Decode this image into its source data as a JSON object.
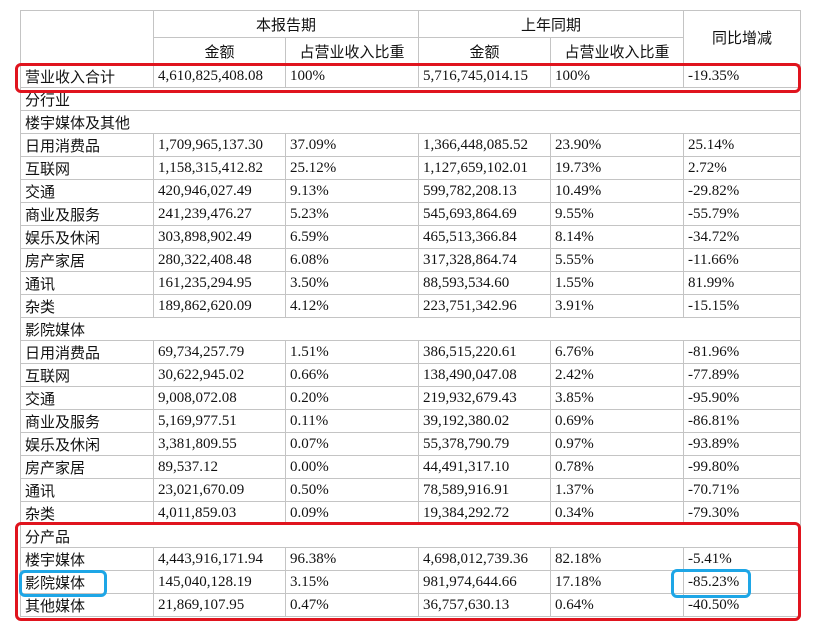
{
  "header": {
    "current": "本报告期",
    "prior": "上年同期",
    "change": "同比增减",
    "subheaders": [
      "金额",
      "占营业收入比重",
      "金额",
      "占营业收入比重"
    ]
  },
  "rows": [
    [
      "营业收入合计",
      "4,610,825,408.08",
      "100%",
      "5,716,745,014.15",
      "100%",
      "-19.35%"
    ],
    [
      "分行业"
    ],
    [
      "楼宇媒体及其他"
    ],
    [
      "日用消费品",
      "1,709,965,137.30",
      "37.09%",
      "1,366,448,085.52",
      "23.90%",
      "25.14%"
    ],
    [
      "互联网",
      "1,158,315,412.82",
      "25.12%",
      "1,127,659,102.01",
      "19.73%",
      "2.72%"
    ],
    [
      "交通",
      "420,946,027.49",
      "9.13%",
      "599,782,208.13",
      "10.49%",
      "-29.82%"
    ],
    [
      "商业及服务",
      "241,239,476.27",
      "5.23%",
      "545,693,864.69",
      "9.55%",
      "-55.79%"
    ],
    [
      "娱乐及休闲",
      "303,898,902.49",
      "6.59%",
      "465,513,366.84",
      "8.14%",
      "-34.72%"
    ],
    [
      "房产家居",
      "280,322,408.48",
      "6.08%",
      "317,328,864.74",
      "5.55%",
      "-11.66%"
    ],
    [
      "通讯",
      "161,235,294.95",
      "3.50%",
      "88,593,534.60",
      "1.55%",
      "81.99%"
    ],
    [
      "杂类",
      "189,862,620.09",
      "4.12%",
      "223,751,342.96",
      "3.91%",
      "-15.15%"
    ],
    [
      "影院媒体"
    ],
    [
      "日用消费品",
      "69,734,257.79",
      "1.51%",
      "386,515,220.61",
      "6.76%",
      "-81.96%"
    ],
    [
      "互联网",
      "30,622,945.02",
      "0.66%",
      "138,490,047.08",
      "2.42%",
      "-77.89%"
    ],
    [
      "交通",
      "9,008,072.08",
      "0.20%",
      "219,932,679.43",
      "3.85%",
      "-95.90%"
    ],
    [
      "商业及服务",
      "5,169,977.51",
      "0.11%",
      "39,192,380.02",
      "0.69%",
      "-86.81%"
    ],
    [
      "娱乐及休闲",
      "3,381,809.55",
      "0.07%",
      "55,378,790.79",
      "0.97%",
      "-93.89%"
    ],
    [
      "房产家居",
      "89,537.12",
      "0.00%",
      "44,491,317.10",
      "0.78%",
      "-99.80%"
    ],
    [
      "通讯",
      "23,021,670.09",
      "0.50%",
      "78,589,916.91",
      "1.37%",
      "-70.71%"
    ],
    [
      "杂类",
      "4,011,859.03",
      "0.09%",
      "19,384,292.72",
      "0.34%",
      "-79.30%"
    ],
    [
      "分产品"
    ],
    [
      "楼宇媒体",
      "4,443,916,171.94",
      "96.38%",
      "4,698,012,739.36",
      "82.18%",
      "-5.41%"
    ],
    [
      "影院媒体",
      "145,040,128.19",
      "3.15%",
      "981,974,644.66",
      "17.18%",
      "-85.23%"
    ],
    [
      "其他媒体",
      "21,869,107.95",
      "0.47%",
      "36,757,630.13",
      "0.64%",
      "-40.50%"
    ]
  ]
}
